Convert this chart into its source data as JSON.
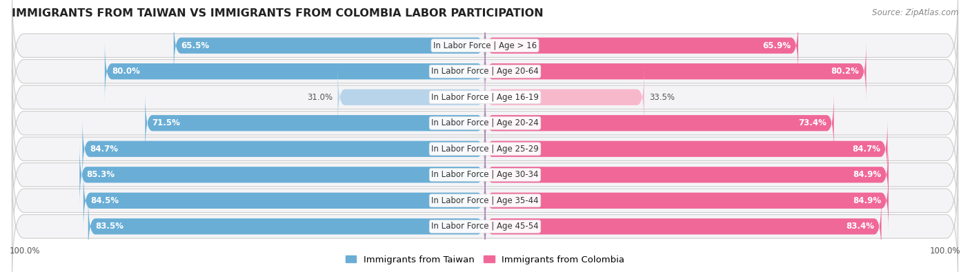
{
  "title": "IMMIGRANTS FROM TAIWAN VS IMMIGRANTS FROM COLOMBIA LABOR PARTICIPATION",
  "source": "Source: ZipAtlas.com",
  "categories": [
    "In Labor Force | Age > 16",
    "In Labor Force | Age 20-64",
    "In Labor Force | Age 16-19",
    "In Labor Force | Age 20-24",
    "In Labor Force | Age 25-29",
    "In Labor Force | Age 30-34",
    "In Labor Force | Age 35-44",
    "In Labor Force | Age 45-54"
  ],
  "taiwan_values": [
    65.5,
    80.0,
    31.0,
    71.5,
    84.7,
    85.3,
    84.5,
    83.5
  ],
  "colombia_values": [
    65.9,
    80.2,
    33.5,
    73.4,
    84.7,
    84.9,
    84.9,
    83.4
  ],
  "taiwan_color": "#6aaed6",
  "taiwan_color_light": "#b8d4ea",
  "colombia_color": "#f06898",
  "colombia_color_light": "#f8b8cc",
  "bg_row_color": "#f4f4f6",
  "bar_height": 0.62,
  "legend_taiwan": "Immigrants from Taiwan",
  "legend_colombia": "Immigrants from Colombia",
  "title_fontsize": 11.5,
  "label_fontsize": 8.5,
  "value_fontsize": 8.5,
  "legend_fontsize": 9.5,
  "x_max": 100,
  "low_threshold": 50
}
